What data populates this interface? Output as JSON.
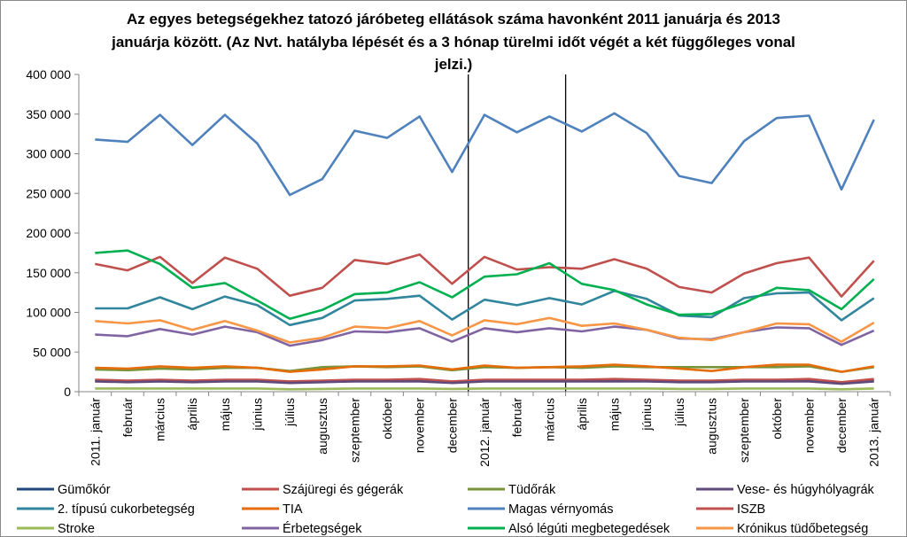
{
  "chart_data": {
    "type": "line",
    "title_lines": [
      "Az egyes betegségekhez tatozó járóbeteg ellátások száma havonként 2011 januárja és 2013",
      "januárja között. (Az Nvt. hatályba lépését és a 3 hónap türelmi időt végét a két függőleges vonal",
      "jelzi.)"
    ],
    "x": [
      "2011. január",
      "február",
      "március",
      "április",
      "május",
      "június",
      "július",
      "augusztus",
      "szeptember",
      "október",
      "november",
      "december",
      "2012. január",
      "február",
      "március",
      "április",
      "május",
      "június",
      "július",
      "augusztus",
      "szeptember",
      "október",
      "november",
      "december",
      "2013. január"
    ],
    "ylim": [
      0,
      400000
    ],
    "yticks": [
      0,
      50000,
      100000,
      150000,
      200000,
      250000,
      300000,
      350000,
      400000
    ],
    "ytick_labels": [
      "0",
      "50 000",
      "100 000",
      "150 000",
      "200 000",
      "250 000",
      "300 000",
      "350 000",
      "400 000"
    ],
    "vertical_markers": [
      "december",
      "március"
    ],
    "vertical_marker_indices": [
      11.5,
      14.5
    ],
    "grid": false,
    "legend_position": "bottom",
    "series": [
      {
        "name": "Gümőkór",
        "color": "#1F497D",
        "values": [
          14000,
          13000,
          14000,
          13000,
          14000,
          14000,
          12000,
          13000,
          14000,
          14000,
          14000,
          12000,
          14000,
          14000,
          14000,
          14000,
          14000,
          14000,
          13000,
          13000,
          14000,
          14000,
          14000,
          11000,
          14000
        ]
      },
      {
        "name": "Szájüregi és gégerák",
        "color": "#C0504D",
        "values": [
          15000,
          14000,
          15000,
          14000,
          15000,
          15000,
          13000,
          14000,
          15000,
          15000,
          16000,
          13000,
          15000,
          15000,
          15000,
          15000,
          16000,
          15000,
          14000,
          14000,
          15000,
          15000,
          16000,
          12000,
          16000
        ]
      },
      {
        "name": "Tüdőrák",
        "color": "#77933C",
        "values": [
          28000,
          27000,
          29000,
          28000,
          30000,
          30000,
          26000,
          31000,
          32000,
          31000,
          32000,
          27000,
          31000,
          30000,
          31000,
          30000,
          32000,
          31000,
          31000,
          31000,
          31000,
          31000,
          32000,
          25000,
          31000
        ]
      },
      {
        "name": "Vese- és húgyhólyagrák",
        "color": "#604A7B",
        "values": [
          13000,
          12000,
          13000,
          12000,
          13000,
          13000,
          11000,
          12000,
          13000,
          13000,
          13000,
          11000,
          13000,
          13000,
          13000,
          13000,
          13000,
          13000,
          12000,
          12000,
          13000,
          13000,
          13000,
          10000,
          13000
        ]
      },
      {
        "name": "2. típusú cukorbetegség",
        "color": "#31859C",
        "values": [
          105000,
          105000,
          119000,
          104000,
          120000,
          109000,
          84000,
          93000,
          115000,
          117000,
          121000,
          91000,
          116000,
          109000,
          118000,
          110000,
          127000,
          117000,
          96000,
          94000,
          118000,
          124000,
          125000,
          90000,
          118000
        ]
      },
      {
        "name": "TIA",
        "color": "#E46C0A",
        "values": [
          30000,
          29000,
          32000,
          30000,
          32000,
          30000,
          25000,
          28000,
          32000,
          32000,
          33000,
          28000,
          33000,
          30000,
          31000,
          32000,
          34000,
          32000,
          29000,
          26000,
          31000,
          34000,
          34000,
          25000,
          32000
        ]
      },
      {
        "name": "Magas vérnyomás",
        "color": "#4F81BD",
        "values": [
          318000,
          315000,
          349000,
          311000,
          349000,
          313000,
          248000,
          268000,
          329000,
          320000,
          347000,
          277000,
          349000,
          327000,
          347000,
          328000,
          351000,
          326000,
          272000,
          263000,
          316000,
          345000,
          348000,
          255000,
          343000
        ]
      },
      {
        "name": "ISZB",
        "color": "#C0504D",
        "values": [
          161000,
          153000,
          170000,
          137000,
          169000,
          155000,
          121000,
          131000,
          166000,
          161000,
          173000,
          136000,
          170000,
          154000,
          157000,
          155000,
          167000,
          155000,
          132000,
          125000,
          149000,
          162000,
          169000,
          120000,
          165000
        ]
      },
      {
        "name": "Stroke",
        "color": "#9BBB59",
        "values": [
          4000,
          4000,
          4000,
          4000,
          4000,
          4000,
          3000,
          3500,
          4000,
          4000,
          4000,
          3500,
          4000,
          4000,
          4000,
          4000,
          4000,
          4000,
          3500,
          3500,
          4000,
          4000,
          4000,
          3000,
          4000
        ]
      },
      {
        "name": "Érbetegségek",
        "color": "#8064A2",
        "values": [
          72000,
          70000,
          79000,
          72000,
          82000,
          75000,
          58000,
          65000,
          76000,
          75000,
          80000,
          63000,
          80000,
          75000,
          80000,
          76000,
          82000,
          78000,
          67000,
          66000,
          75000,
          81000,
          80000,
          59000,
          77000
        ]
      },
      {
        "name": "Alsó légúti megbetegedések",
        "color": "#00B050",
        "values": [
          175000,
          178000,
          161000,
          131000,
          137000,
          115000,
          92000,
          103000,
          123000,
          125000,
          138000,
          119000,
          145000,
          148000,
          162000,
          136000,
          128000,
          110000,
          97000,
          98000,
          112000,
          131000,
          128000,
          104000,
          142000
        ]
      },
      {
        "name": "Krónikus tüdőbetegség",
        "color": "#F79646",
        "values": [
          89000,
          86000,
          90000,
          78000,
          89000,
          77000,
          62000,
          68000,
          82000,
          80000,
          89000,
          71000,
          90000,
          85000,
          93000,
          83000,
          86000,
          78000,
          68000,
          65000,
          75000,
          86000,
          85000,
          63000,
          87000
        ]
      }
    ]
  }
}
